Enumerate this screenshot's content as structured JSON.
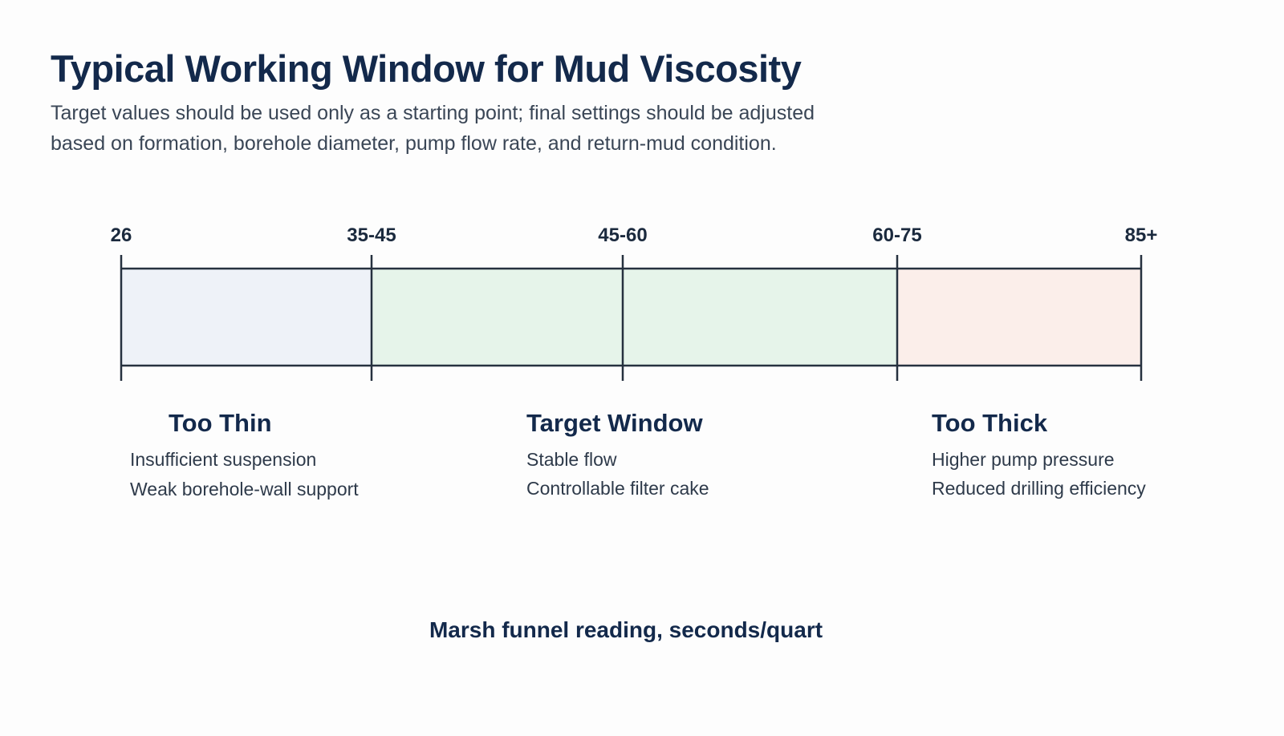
{
  "title": "Typical Working Window for Mud Viscosity",
  "subtitle": [
    "Target values should be used only as a starting point; final settings should be adjusted",
    "based on formation, borehole diameter, pump flow rate, and return-mud condition."
  ],
  "scale": {
    "tick_labels": [
      "26",
      "35-45",
      "45-60",
      "60-75",
      "85+"
    ],
    "colors": {
      "too_thin": "#eef2f8",
      "target": "#e6f4ea",
      "too_thick": "#fbeeea",
      "line": "#26313f"
    }
  },
  "zones": {
    "too_thin": {
      "heading": "Too Thin",
      "notes": [
        "Insufficient suspension",
        "Weak borehole-wall support"
      ]
    },
    "target": {
      "heading": "Target Window",
      "notes": [
        "Stable flow",
        "Controllable filter cake"
      ]
    },
    "too_thick": {
      "heading": "Too Thick",
      "notes": [
        "Higher pump pressure",
        "Reduced drilling efficiency"
      ]
    }
  },
  "axis_caption": "Marsh funnel reading, seconds/quart"
}
